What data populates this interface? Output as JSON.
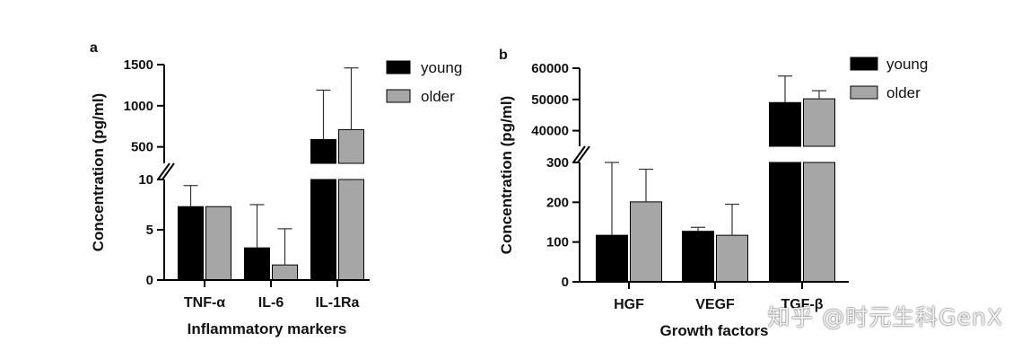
{
  "colors": {
    "young": "#000000",
    "older": "#a6a6a6"
  },
  "watermark": {
    "text": "知乎 @时元生科GenX"
  },
  "chart_data": [
    {
      "panel": "a",
      "type": "bar",
      "ylabel": "Concentration (pg/ml)",
      "xlabel": "Inflammatory markers",
      "categories": [
        "TNF-α",
        "IL-6",
        "IL-1Ra"
      ],
      "series": [
        {
          "name": "young",
          "values": [
            7.3,
            3.2,
            590
          ],
          "err": [
            2.1,
            4.3,
            600
          ]
        },
        {
          "name": "older",
          "values": [
            7.3,
            1.5,
            710
          ],
          "err": [
            0,
            3.6,
            750
          ]
        }
      ],
      "y_segments": [
        {
          "range": [
            0,
            10
          ],
          "ticks": [
            0,
            5,
            10
          ]
        },
        {
          "range": [
            300,
            1500
          ],
          "ticks": [
            500,
            1000,
            1500
          ]
        }
      ],
      "legend": [
        "young",
        "older"
      ],
      "legend_position": "top-right"
    },
    {
      "panel": "b",
      "type": "bar",
      "ylabel": "Concentration (pg/ml)",
      "xlabel": "Growth factors",
      "categories": [
        "HGF",
        "VEGF",
        "TGF-β"
      ],
      "series": [
        {
          "name": "young",
          "values": [
            117,
            127,
            49000
          ],
          "err": [
            183,
            10,
            8500
          ]
        },
        {
          "name": "older",
          "values": [
            201,
            117,
            50200
          ],
          "err": [
            82,
            78,
            2600
          ]
        }
      ],
      "y_segments": [
        {
          "range": [
            0,
            300
          ],
          "ticks": [
            0,
            100,
            200,
            300
          ]
        },
        {
          "range": [
            35000,
            60000
          ],
          "ticks": [
            40000,
            50000,
            60000
          ]
        }
      ],
      "legend": [
        "young",
        "older"
      ],
      "legend_position": "top-right"
    }
  ]
}
